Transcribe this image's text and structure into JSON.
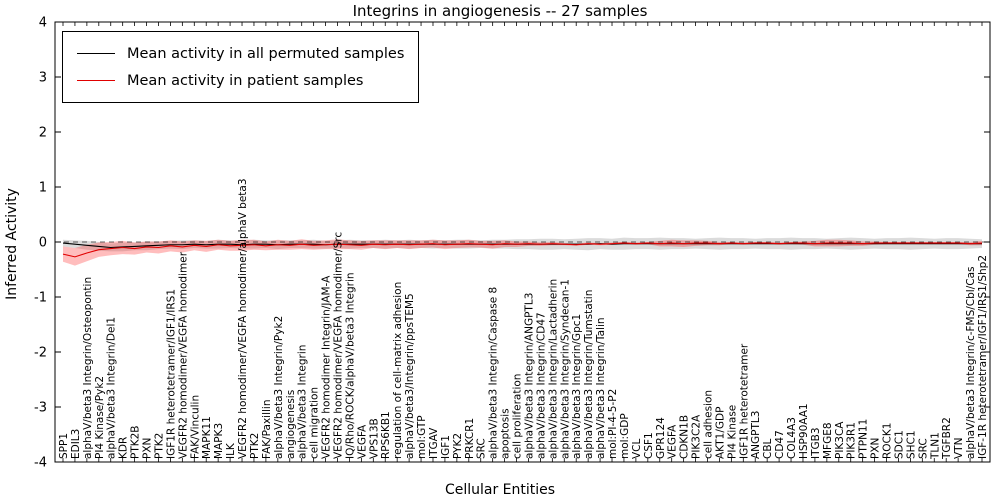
{
  "title": "Integrins in angiogenesis -- 27 samples",
  "axes": {
    "ylabel": "Inferred Activity",
    "xlabel": "Cellular Entities",
    "ylim": [
      -4,
      4
    ],
    "yticks": [
      4,
      3,
      2,
      1,
      0,
      -1,
      -2,
      -3,
      -4
    ]
  },
  "legend": {
    "permuted_label": "Mean activity in all permuted samples",
    "patient_label": "Mean activity in patient samples"
  },
  "colors": {
    "permuted_line": "#000000",
    "permuted_band": "#999999",
    "patient_line": "#e00000",
    "patient_band": "#ff3333"
  },
  "chart_data": {
    "type": "line",
    "title": "Integrins in angiogenesis -- 27 samples",
    "xlabel": "Cellular Entities",
    "ylabel": "Inferred Activity",
    "ylim": [
      -4,
      4
    ],
    "grid": false,
    "legend_position": "upper left",
    "categories": [
      "SPP1",
      "EDIL3",
      "alphaV/beta3 Integrin/Osteopontin",
      "PI4 Kinase/Pyk2",
      "alphaV/beta3 Integrin/Del1",
      "KDR",
      "PTK2B",
      "PXN",
      "PTK2",
      "IGF1R heterotetramer/IGF1/IRS1",
      "VEGFR2 homodimer/VEGFA homodimer",
      "FAK/Vinculin",
      "MAPK11",
      "MAPK3",
      "ILK",
      "VEGFR2 homodimer/VEGFA homodimer/alphaV beta3",
      "PTK2",
      "FAK/Paxillin",
      "alphaV/beta3 Integrin/Pyk2",
      "angiogenesis",
      "alphaV/beta3 Integrin",
      "cell migration",
      "VEGFR2 homodimer Integrin/JAM-A",
      "VEGFR2 homodimer/VEGFA homodimer/Src",
      "IQ/Rho/ROCK/alphaV/beta3 Integrin",
      "VEGFA",
      "VPS13B",
      "RPS6KB1",
      "regulation of cell-matrix adhesion",
      "alphaV/beta3/Integrin/ppsTEM5",
      "mol:GTP",
      "ITGAV",
      "IGF1",
      "PYK2",
      "PRKCR1",
      "SRC",
      "alphaV/beta3 Integrin/Caspase 8",
      "apoptosis",
      "cell proliferation",
      "alphaV/beta3 Integrin/ANGPTL3",
      "alphaV/beta3 Integrin/CD47",
      "alphaV/beta3 Integrin/Lactadherin",
      "alphaV/beta3 Integrin/Syndecan-1",
      "alphaV/beta3 Integrin/Gpc1",
      "alphaV/beta3 Integrin/Tumstatin",
      "alphaV/beta3 Integrin/Talin",
      "mol:PI-4-5-P2",
      "mol:GDP",
      "VCL",
      "CSF1",
      "GPR124",
      "VEGFA",
      "CDKN1B",
      "PIK3C2A",
      "cell adhesion",
      "AKT1/GDP",
      "PI4 Kinase",
      "IGF1R heterotetramer",
      "ANGPTL3",
      "CBL",
      "CD47",
      "COL4A3",
      "HSP90AA1",
      "ITGB3",
      "MFGE8",
      "PIK3CA",
      "PIK3R1",
      "PTPN11",
      "PXN",
      "ROCK1",
      "SDC1",
      "SHC1",
      "SRC",
      "TLN1",
      "TGFBR2",
      "VTN",
      "alphaV/beta3 Integrin/c-FMS/Cbl/Cas",
      "IGF-1R heterotetramer/IGF1/IRS1/Shp2"
    ],
    "series": [
      {
        "name": "Mean activity in all permuted samples",
        "values": [
          -0.02,
          -0.04,
          -0.06,
          -0.08,
          -0.1,
          -0.09,
          -0.08,
          -0.07,
          -0.06,
          -0.05,
          -0.05,
          -0.04,
          -0.05,
          -0.04,
          -0.04,
          -0.05,
          -0.04,
          -0.04,
          -0.05,
          -0.04,
          -0.04,
          -0.04,
          -0.05,
          -0.04,
          -0.04,
          -0.04,
          -0.04,
          -0.04,
          -0.04,
          -0.04,
          -0.04,
          -0.04,
          -0.04,
          -0.04,
          -0.04,
          -0.04,
          -0.04,
          -0.04,
          -0.04,
          -0.04,
          -0.04,
          -0.04,
          -0.04,
          -0.04,
          -0.04,
          -0.03,
          -0.04,
          -0.03,
          -0.03,
          -0.03,
          -0.03,
          -0.03,
          -0.03,
          -0.03,
          -0.03,
          -0.03,
          -0.03,
          -0.03,
          -0.03,
          -0.03,
          -0.03,
          -0.03,
          -0.03,
          -0.03,
          -0.03,
          -0.03,
          -0.03,
          -0.03,
          -0.03,
          -0.03,
          -0.03,
          -0.03,
          -0.03,
          -0.03,
          -0.03,
          -0.03,
          -0.03,
          -0.03
        ]
      },
      {
        "name": "Mean activity in patient samples",
        "values": [
          -0.22,
          -0.27,
          -0.2,
          -0.14,
          -0.12,
          -0.1,
          -0.12,
          -0.09,
          -0.1,
          -0.07,
          -0.09,
          -0.06,
          -0.08,
          -0.05,
          -0.07,
          -0.06,
          -0.05,
          -0.07,
          -0.05,
          -0.06,
          -0.04,
          -0.06,
          -0.05,
          -0.04,
          -0.05,
          -0.06,
          -0.04,
          -0.05,
          -0.04,
          -0.05,
          -0.04,
          -0.03,
          -0.05,
          -0.04,
          -0.03,
          -0.04,
          -0.05,
          -0.03,
          -0.04,
          -0.03,
          -0.04,
          -0.03,
          -0.04,
          -0.05,
          -0.03,
          -0.04,
          -0.03,
          -0.02,
          -0.03,
          -0.02,
          -0.03,
          -0.02,
          -0.03,
          -0.02,
          -0.02,
          -0.03,
          -0.02,
          -0.03,
          -0.02,
          -0.02,
          -0.03,
          -0.02,
          -0.02,
          -0.03,
          -0.02,
          -0.02,
          -0.02,
          -0.03,
          -0.02,
          -0.02,
          -0.02,
          -0.02,
          -0.02,
          -0.02,
          -0.02,
          -0.02,
          -0.03,
          -0.02
        ]
      }
    ],
    "bands": [
      {
        "name": "permuted-range",
        "series": 0,
        "half_width": [
          0.06,
          0.07,
          0.08,
          0.08,
          0.07,
          0.08,
          0.07,
          0.08,
          0.07,
          0.07,
          0.08,
          0.07,
          0.07,
          0.08,
          0.07,
          0.07,
          0.08,
          0.07,
          0.08,
          0.07,
          0.07,
          0.08,
          0.07,
          0.07,
          0.08,
          0.07,
          0.07,
          0.08,
          0.07,
          0.08,
          0.07,
          0.08,
          0.07,
          0.08,
          0.08,
          0.07,
          0.08,
          0.08,
          0.09,
          0.09,
          0.1,
          0.1,
          0.09,
          0.1,
          0.11,
          0.1,
          0.1,
          0.11,
          0.1,
          0.1,
          0.11,
          0.1,
          0.1,
          0.09,
          0.1,
          0.11,
          0.1,
          0.1,
          0.09,
          0.1,
          0.1,
          0.11,
          0.1,
          0.1,
          0.09,
          0.1,
          0.11,
          0.1,
          0.09,
          0.1,
          0.1,
          0.11,
          0.1,
          0.09,
          0.1,
          0.1,
          0.09,
          0.08
        ]
      },
      {
        "name": "patient-range",
        "series": 1,
        "half_width": [
          0.14,
          0.16,
          0.15,
          0.13,
          0.12,
          0.12,
          0.11,
          0.1,
          0.11,
          0.1,
          0.1,
          0.09,
          0.1,
          0.09,
          0.09,
          0.1,
          0.09,
          0.08,
          0.09,
          0.08,
          0.09,
          0.08,
          0.08,
          0.09,
          0.08,
          0.08,
          0.07,
          0.08,
          0.07,
          0.08,
          0.07,
          0.07,
          0.08,
          0.07,
          0.07,
          0.06,
          0.07,
          0.06,
          0.05,
          0.04,
          0.03,
          0.03,
          0.02,
          0.02,
          0.02,
          0.02,
          0.02,
          0.02,
          0.02,
          0.02,
          0.05,
          0.06,
          0.06,
          0.05,
          0.04,
          0.03,
          0.02,
          0.02,
          0.02,
          0.02,
          0.02,
          0.02,
          0.03,
          0.05,
          0.06,
          0.06,
          0.05,
          0.04,
          0.03,
          0.02,
          0.02,
          0.02,
          0.02,
          0.02,
          0.02,
          0.02,
          0.03,
          0.04
        ]
      }
    ]
  }
}
